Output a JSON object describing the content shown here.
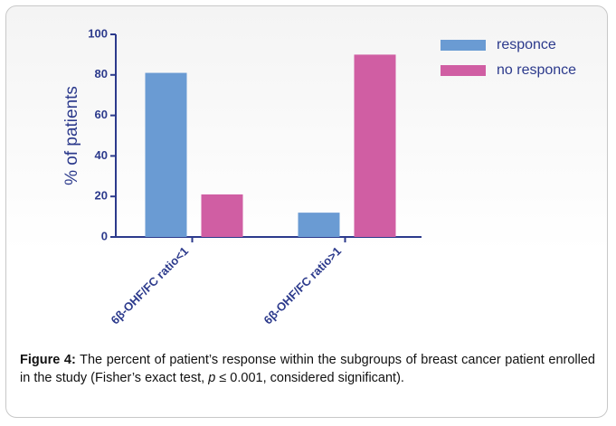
{
  "chart_data": {
    "type": "bar",
    "categories": [
      "6β-OHF/FC ratio<1",
      "6β-OHF/FC ratio>1"
    ],
    "series": [
      {
        "name": "responce",
        "color": "#6a9bd3",
        "values": [
          81,
          12
        ]
      },
      {
        "name": "no responce",
        "color": "#d05ea3",
        "values": [
          21,
          90
        ]
      }
    ],
    "ylabel": "% of patients",
    "ylim": [
      0,
      100
    ],
    "yticks": [
      0,
      20,
      40,
      60,
      80,
      100
    ],
    "legend": "right",
    "grid": false
  },
  "caption": {
    "label": "Figure 4:",
    "text": [
      "The percent of patient’s response within the subgroups of breast cancer patient enrolled in the study (Fisher’s exact test, ",
      "p",
      " ≤ 0.001, considered significant)."
    ]
  }
}
